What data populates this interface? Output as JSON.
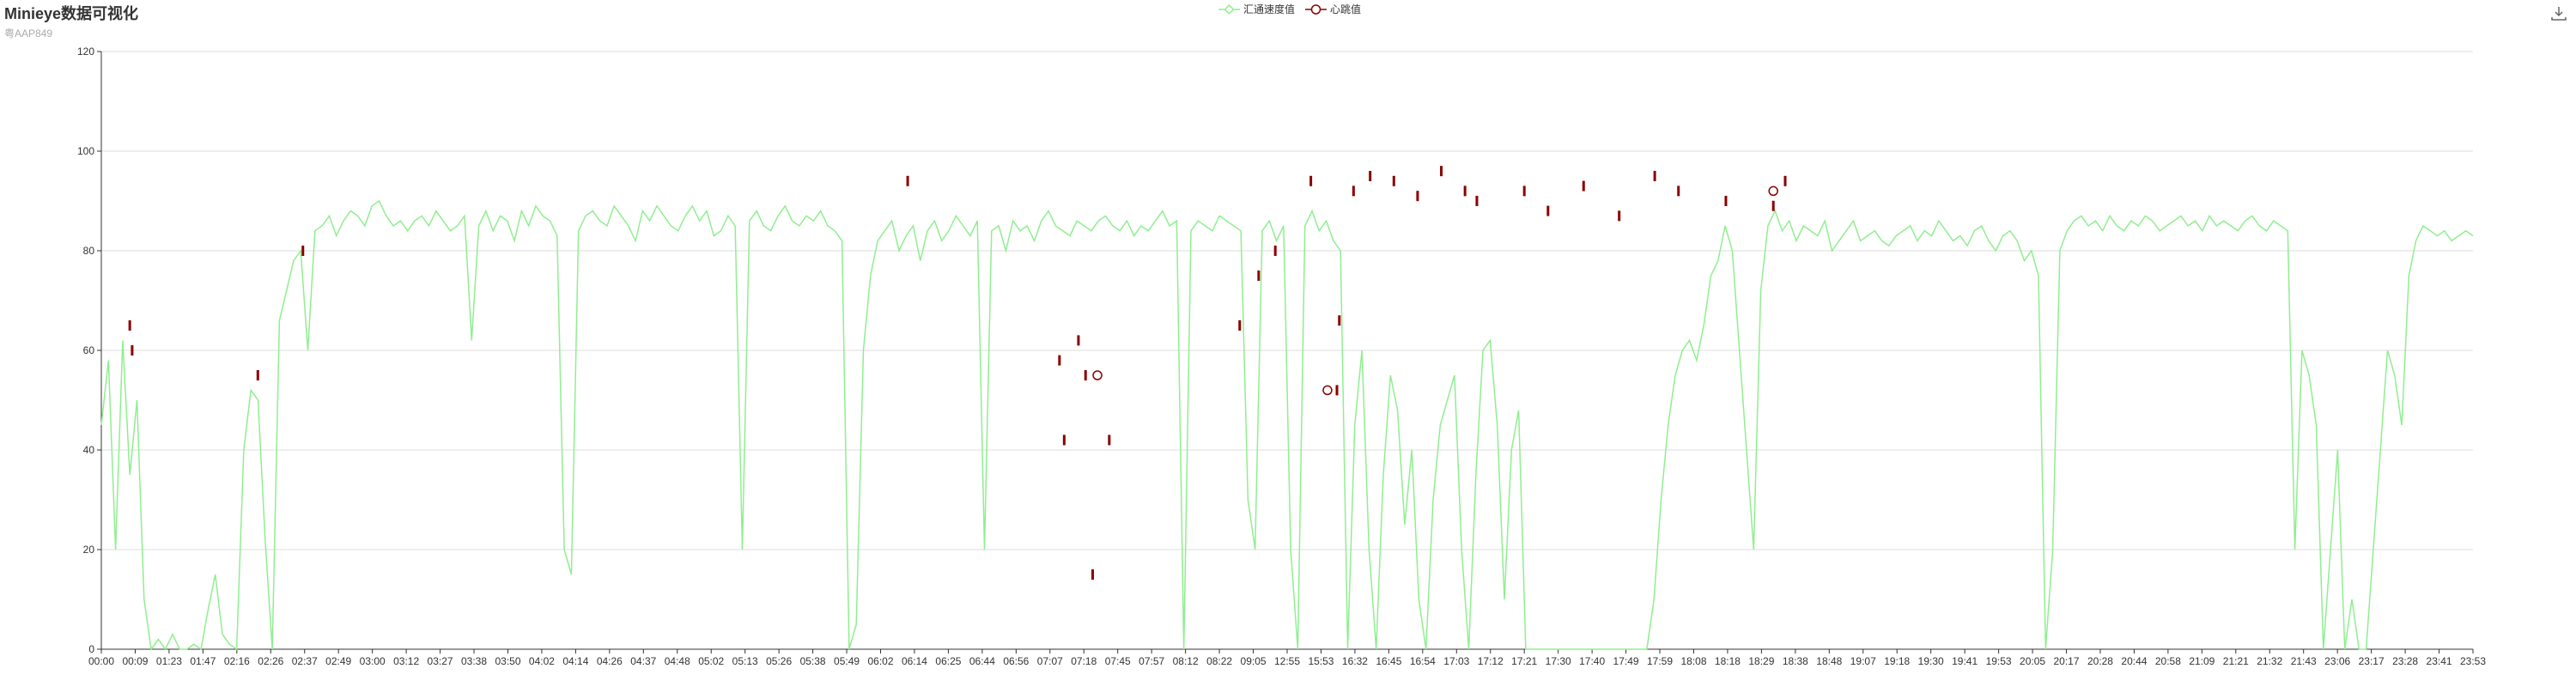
{
  "header": {
    "title": "Minieye数据可视化",
    "subtitle": "粤AAP849"
  },
  "legend": {
    "items": [
      {
        "label": "汇通速度值",
        "color": "#90ee90",
        "symbol": "emptyDiamond"
      },
      {
        "label": "心跳值",
        "color": "#8b0000",
        "symbol": "emptyCircle"
      }
    ]
  },
  "toolbox": {
    "icon": "download-icon"
  },
  "chart_data": {
    "type": "line",
    "y_axis": {
      "min": 0,
      "max": 120,
      "interval": 20,
      "ticks": [
        "0",
        "20",
        "40",
        "60",
        "80",
        "100",
        "120"
      ]
    },
    "x_axis": {
      "categories": [
        "00:00",
        "00:09",
        "01:23",
        "01:47",
        "02:16",
        "02:26",
        "02:37",
        "02:49",
        "03:00",
        "03:12",
        "03:27",
        "03:38",
        "03:50",
        "04:02",
        "04:14",
        "04:26",
        "04:37",
        "04:48",
        "05:02",
        "05:13",
        "05:26",
        "05:38",
        "05:49",
        "06:02",
        "06:14",
        "06:25",
        "06:44",
        "06:56",
        "07:07",
        "07:18",
        "07:45",
        "07:57",
        "08:12",
        "08:22",
        "09:05",
        "12:55",
        "15:53",
        "16:32",
        "16:45",
        "16:54",
        "17:03",
        "17:12",
        "17:21",
        "17:30",
        "17:40",
        "17:49",
        "17:59",
        "18:08",
        "18:18",
        "18:29",
        "18:38",
        "18:48",
        "19:07",
        "19:18",
        "19:30",
        "19:41",
        "19:53",
        "20:05",
        "20:17",
        "20:28",
        "20:44",
        "20:58",
        "21:09",
        "21:21",
        "21:32",
        "21:43",
        "23:06",
        "23:17",
        "23:28",
        "23:41",
        "23:53"
      ]
    },
    "series": [
      {
        "name": "汇通速度值",
        "color": "#90ee90",
        "values": [
          45,
          58,
          20,
          62,
          35,
          50,
          10,
          0,
          2,
          0,
          3,
          0,
          0,
          1,
          0,
          8,
          15,
          3,
          1,
          0,
          40,
          52,
          50,
          22,
          0,
          66,
          72,
          78,
          80,
          60,
          84,
          85,
          87,
          83,
          86,
          88,
          87,
          85,
          89,
          90,
          87,
          85,
          86,
          84,
          86,
          87,
          85,
          88,
          86,
          84,
          85,
          87,
          62,
          85,
          88,
          84,
          87,
          86,
          82,
          88,
          85,
          89,
          87,
          86,
          83,
          20,
          15,
          84,
          87,
          88,
          86,
          85,
          89,
          87,
          85,
          82,
          88,
          86,
          89,
          87,
          85,
          84,
          87,
          89,
          86,
          88,
          83,
          84,
          87,
          85,
          20,
          86,
          88,
          85,
          84,
          87,
          89,
          86,
          85,
          87,
          86,
          88,
          85,
          84,
          82,
          0,
          5,
          60,
          75,
          82,
          84,
          86,
          80,
          83,
          85,
          78,
          84,
          86,
          82,
          84,
          87,
          85,
          83,
          86,
          20,
          84,
          85,
          80,
          86,
          84,
          85,
          82,
          86,
          88,
          85,
          84,
          83,
          86,
          85,
          84,
          86,
          87,
          85,
          84,
          86,
          83,
          85,
          84,
          86,
          88,
          85,
          86,
          0,
          84,
          86,
          85,
          84,
          87,
          86,
          85,
          84,
          30,
          20,
          84,
          86,
          82,
          85,
          20,
          0,
          85,
          88,
          84,
          86,
          82,
          80,
          0,
          45,
          60,
          20,
          0,
          35,
          55,
          48,
          25,
          40,
          10,
          0,
          30,
          45,
          50,
          55,
          20,
          0,
          35,
          60,
          62,
          45,
          10,
          40,
          48,
          0,
          0,
          0,
          0,
          0,
          0,
          0,
          0,
          0,
          0,
          0,
          0,
          0,
          0,
          0,
          0,
          0,
          0,
          10,
          30,
          45,
          55,
          60,
          62,
          58,
          65,
          75,
          78,
          85,
          80,
          60,
          40,
          20,
          72,
          85,
          88,
          84,
          86,
          82,
          85,
          84,
          83,
          86,
          80,
          82,
          84,
          86,
          82,
          83,
          84,
          82,
          81,
          83,
          84,
          85,
          82,
          84,
          83,
          86,
          84,
          82,
          83,
          81,
          84,
          85,
          82,
          80,
          83,
          84,
          82,
          78,
          80,
          75,
          0,
          20,
          80,
          84,
          86,
          87,
          85,
          86,
          84,
          87,
          85,
          84,
          86,
          85,
          87,
          86,
          84,
          85,
          86,
          87,
          85,
          86,
          84,
          87,
          85,
          86,
          85,
          84,
          86,
          87,
          85,
          84,
          86,
          85,
          84,
          20,
          60,
          55,
          45,
          0,
          20,
          40,
          0,
          10,
          0,
          0,
          20,
          40,
          60,
          55,
          45,
          75,
          82,
          85,
          84,
          83,
          84,
          82,
          83,
          84,
          83
        ]
      },
      {
        "name": "心跳值",
        "color": "#8b0000",
        "points": [
          {
            "x": 0.012,
            "y": 65
          },
          {
            "x": 0.013,
            "y": 60
          },
          {
            "x": 0.066,
            "y": 55
          },
          {
            "x": 0.085,
            "y": 80
          },
          {
            "x": 0.34,
            "y": 94
          },
          {
            "x": 0.404,
            "y": 58
          },
          {
            "x": 0.406,
            "y": 42
          },
          {
            "x": 0.412,
            "y": 62
          },
          {
            "x": 0.415,
            "y": 55
          },
          {
            "x": 0.418,
            "y": 15
          },
          {
            "x": 0.425,
            "y": 42
          },
          {
            "x": 0.48,
            "y": 65
          },
          {
            "x": 0.488,
            "y": 75
          },
          {
            "x": 0.495,
            "y": 80
          },
          {
            "x": 0.51,
            "y": 94
          },
          {
            "x": 0.521,
            "y": 52
          },
          {
            "x": 0.522,
            "y": 66
          },
          {
            "x": 0.528,
            "y": 92
          },
          {
            "x": 0.535,
            "y": 95
          },
          {
            "x": 0.545,
            "y": 94
          },
          {
            "x": 0.555,
            "y": 91
          },
          {
            "x": 0.565,
            "y": 96
          },
          {
            "x": 0.575,
            "y": 92
          },
          {
            "x": 0.58,
            "y": 90
          },
          {
            "x": 0.6,
            "y": 92
          },
          {
            "x": 0.61,
            "y": 88
          },
          {
            "x": 0.625,
            "y": 93
          },
          {
            "x": 0.64,
            "y": 87
          },
          {
            "x": 0.655,
            "y": 95
          },
          {
            "x": 0.665,
            "y": 92
          },
          {
            "x": 0.685,
            "y": 90
          },
          {
            "x": 0.705,
            "y": 89
          },
          {
            "x": 0.71,
            "y": 94
          }
        ]
      }
    ]
  }
}
